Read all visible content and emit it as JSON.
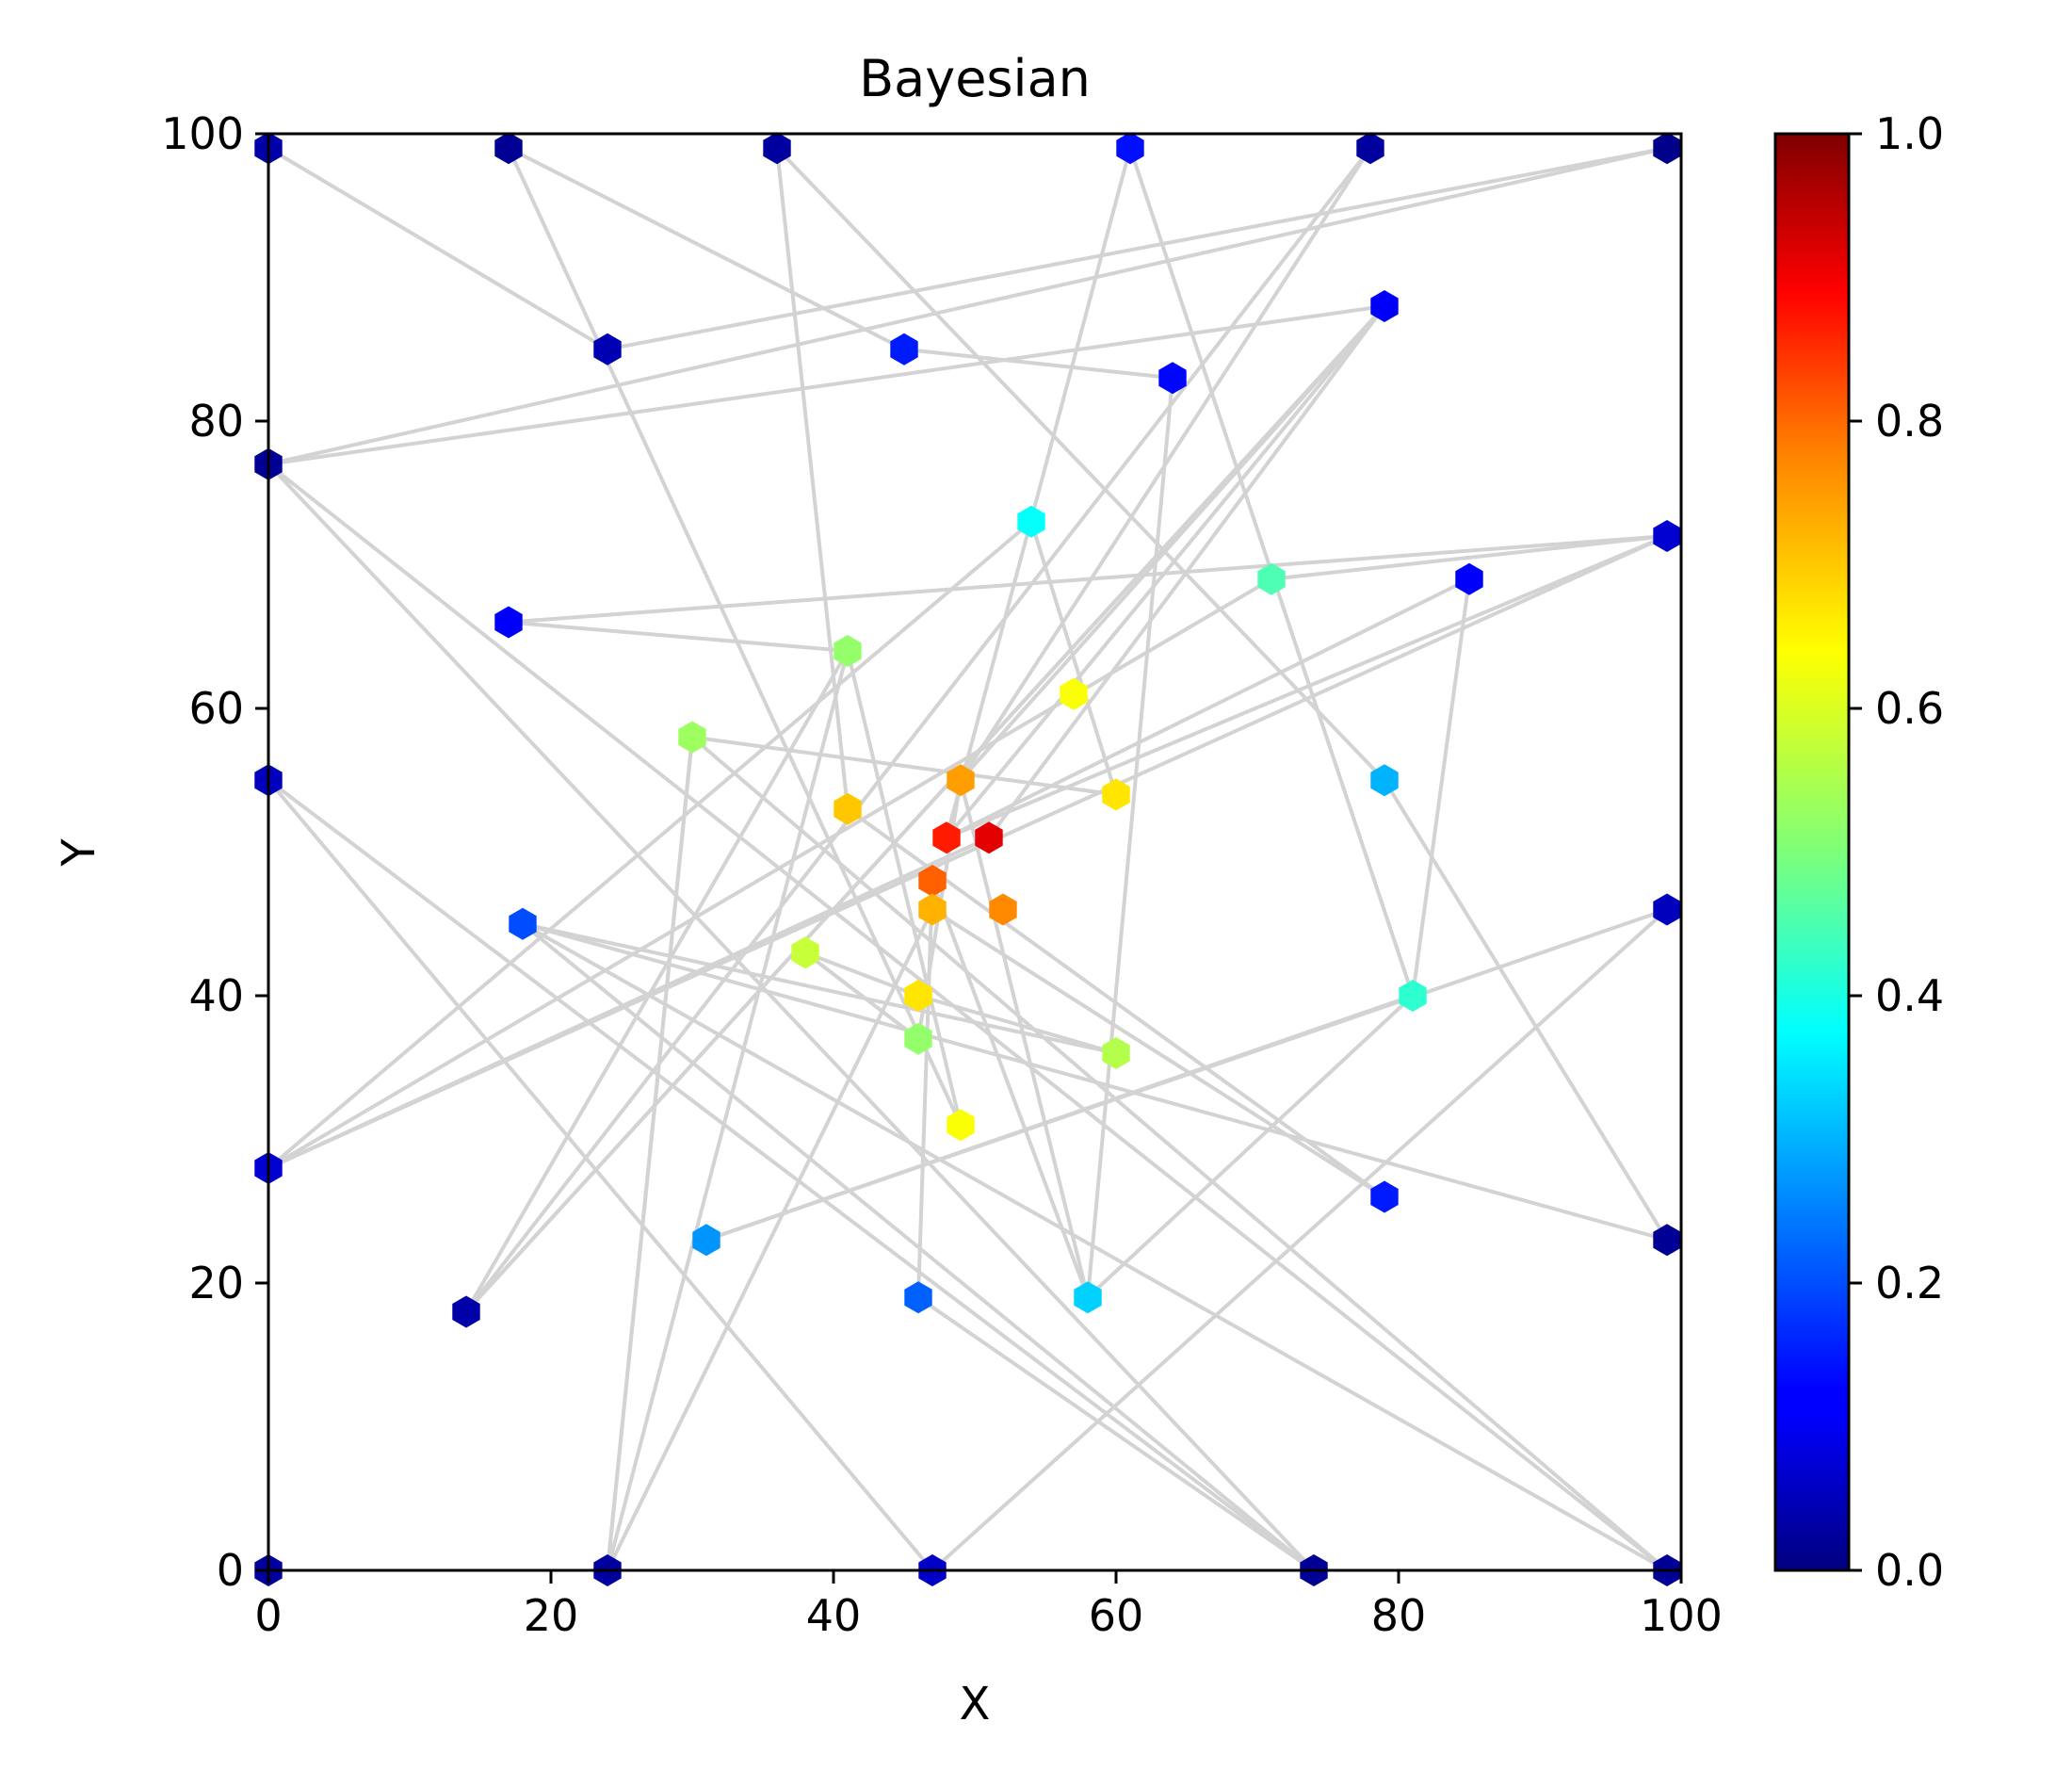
{
  "chart_data": {
    "type": "scatter",
    "title": "Bayesian",
    "xlabel": "X",
    "ylabel": "Y",
    "xlim": [
      0,
      100
    ],
    "ylim": [
      0,
      100
    ],
    "xticks": [
      0,
      20,
      40,
      60,
      80,
      100
    ],
    "yticks": [
      0,
      20,
      40,
      60,
      80,
      100
    ],
    "grid": false,
    "marker": "hexagon",
    "line_color": "#d3d3d3",
    "colormap": "jet",
    "colorbar": {
      "range": [
        0,
        1
      ],
      "ticks": [
        "0.0",
        "0.2",
        "0.4",
        "0.6",
        "0.8",
        "1.0"
      ]
    },
    "points": [
      {
        "x": 0,
        "y": 99,
        "v": 0.04
      },
      {
        "x": 17,
        "y": 99,
        "v": 0.02
      },
      {
        "x": 36,
        "y": 99,
        "v": 0.03
      },
      {
        "x": 61,
        "y": 99,
        "v": 0.14
      },
      {
        "x": 78,
        "y": 99,
        "v": 0.03
      },
      {
        "x": 99,
        "y": 99,
        "v": 0.01
      },
      {
        "x": 24,
        "y": 85,
        "v": 0.05
      },
      {
        "x": 45,
        "y": 85,
        "v": 0.15
      },
      {
        "x": 64,
        "y": 83,
        "v": 0.13
      },
      {
        "x": 79,
        "y": 88,
        "v": 0.12
      },
      {
        "x": 0,
        "y": 77,
        "v": 0.02
      },
      {
        "x": 54,
        "y": 73,
        "v": 0.38
      },
      {
        "x": 71,
        "y": 69,
        "v": 0.45
      },
      {
        "x": 85,
        "y": 69,
        "v": 0.12
      },
      {
        "x": 99,
        "y": 72,
        "v": 0.08
      },
      {
        "x": 17,
        "y": 66,
        "v": 0.12
      },
      {
        "x": 41,
        "y": 64,
        "v": 0.52
      },
      {
        "x": 57,
        "y": 61,
        "v": 0.62
      },
      {
        "x": 30,
        "y": 58,
        "v": 0.53
      },
      {
        "x": 49,
        "y": 55,
        "v": 0.72
      },
      {
        "x": 60,
        "y": 54,
        "v": 0.65
      },
      {
        "x": 79,
        "y": 55,
        "v": 0.3
      },
      {
        "x": 0,
        "y": 55,
        "v": 0.06
      },
      {
        "x": 41,
        "y": 53,
        "v": 0.68
      },
      {
        "x": 48,
        "y": 51,
        "v": 0.85
      },
      {
        "x": 51,
        "y": 51,
        "v": 0.9
      },
      {
        "x": 47,
        "y": 48,
        "v": 0.78
      },
      {
        "x": 47,
        "y": 46,
        "v": 0.7
      },
      {
        "x": 52,
        "y": 46,
        "v": 0.74
      },
      {
        "x": 18,
        "y": 45,
        "v": 0.2
      },
      {
        "x": 99,
        "y": 46,
        "v": 0.06
      },
      {
        "x": 38,
        "y": 43,
        "v": 0.57
      },
      {
        "x": 46,
        "y": 40,
        "v": 0.65
      },
      {
        "x": 81,
        "y": 40,
        "v": 0.42
      },
      {
        "x": 46,
        "y": 37,
        "v": 0.52
      },
      {
        "x": 60,
        "y": 36,
        "v": 0.55
      },
      {
        "x": 49,
        "y": 31,
        "v": 0.62
      },
      {
        "x": 0,
        "y": 28,
        "v": 0.08
      },
      {
        "x": 79,
        "y": 26,
        "v": 0.15
      },
      {
        "x": 31,
        "y": 23,
        "v": 0.27
      },
      {
        "x": 99,
        "y": 23,
        "v": 0.02
      },
      {
        "x": 14,
        "y": 18,
        "v": 0.04
      },
      {
        "x": 46,
        "y": 19,
        "v": 0.22
      },
      {
        "x": 58,
        "y": 19,
        "v": 0.33
      },
      {
        "x": 0,
        "y": 0,
        "v": 0.03
      },
      {
        "x": 24,
        "y": 0,
        "v": 0.03
      },
      {
        "x": 47,
        "y": 0,
        "v": 0.07
      },
      {
        "x": 74,
        "y": 0,
        "v": 0.02
      },
      {
        "x": 99,
        "y": 0,
        "v": 0.02
      }
    ],
    "path": [
      [
        0,
        99
      ],
      [
        24,
        85
      ],
      [
        99,
        99
      ],
      [
        0,
        77
      ],
      [
        99,
        0
      ],
      [
        30,
        58
      ],
      [
        24,
        0
      ],
      [
        41,
        64
      ],
      [
        14,
        18
      ],
      [
        79,
        88
      ],
      [
        48,
        51
      ],
      [
        85,
        69
      ],
      [
        81,
        40
      ],
      [
        31,
        23
      ],
      [
        99,
        46
      ],
      [
        47,
        0
      ],
      [
        0,
        55
      ],
      [
        74,
        0
      ],
      [
        0,
        77
      ],
      [
        79,
        88
      ],
      [
        49,
        55
      ],
      [
        78,
        99
      ],
      [
        14,
        18
      ],
      [
        79,
        88
      ],
      [
        51,
        51
      ],
      [
        0,
        28
      ],
      [
        99,
        72
      ],
      [
        48,
        51
      ],
      [
        61,
        99
      ],
      [
        81,
        40
      ],
      [
        58,
        19
      ],
      [
        49,
        55
      ],
      [
        46,
        37
      ],
      [
        38,
        43
      ],
      [
        46,
        40
      ],
      [
        60,
        36
      ],
      [
        18,
        45
      ],
      [
        99,
        23
      ],
      [
        79,
        55
      ],
      [
        36,
        99
      ],
      [
        41,
        53
      ],
      [
        79,
        26
      ],
      [
        47,
        46
      ],
      [
        24,
        0
      ],
      [
        30,
        58
      ],
      [
        60,
        54
      ],
      [
        54,
        73
      ],
      [
        0,
        28
      ],
      [
        71,
        69
      ],
      [
        99,
        72
      ],
      [
        17,
        66
      ],
      [
        41,
        64
      ],
      [
        49,
        31
      ],
      [
        17,
        99
      ],
      [
        45,
        85
      ],
      [
        64,
        83
      ],
      [
        58,
        19
      ],
      [
        47,
        48
      ],
      [
        46,
        19
      ],
      [
        74,
        0
      ],
      [
        18,
        45
      ],
      [
        99,
        0
      ]
    ]
  }
}
